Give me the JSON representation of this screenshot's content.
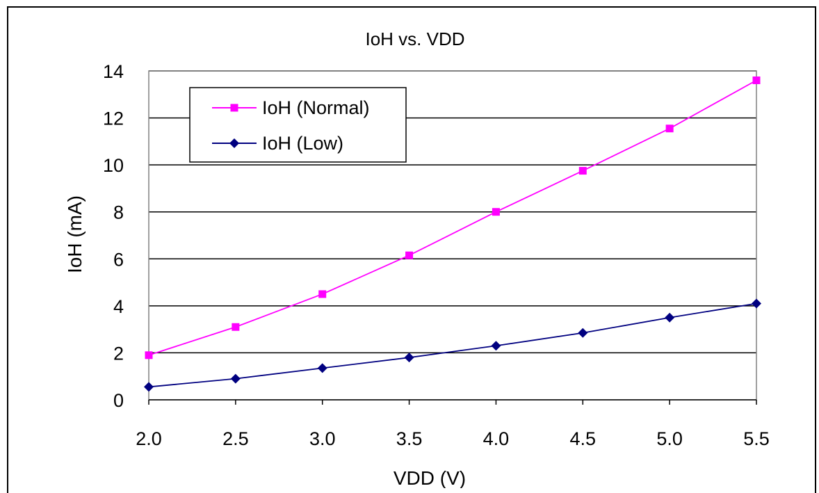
{
  "chart_data": {
    "type": "line",
    "title": "IoH vs. VDD",
    "xlabel": "VDD (V)",
    "ylabel": "IoH (mA)",
    "x": [
      2.0,
      2.5,
      3.0,
      3.5,
      4.0,
      4.5,
      5.0,
      5.5
    ],
    "x_tick_labels": [
      "2.0",
      "2.5",
      "3.0",
      "3.5",
      "4.0",
      "4.5",
      "5.0",
      "5.5"
    ],
    "xlim": [
      2.0,
      5.5
    ],
    "ylim": [
      0,
      14
    ],
    "y_ticks": [
      0,
      2,
      4,
      6,
      8,
      10,
      12,
      14
    ],
    "grid": "horizontal",
    "legend_position": "top-left",
    "series": [
      {
        "name": "IoH (Normal)",
        "color": "#ff00ff",
        "marker": "square",
        "values": [
          1.9,
          3.1,
          4.5,
          6.15,
          8.0,
          9.75,
          11.55,
          13.6
        ]
      },
      {
        "name": "IoH (Low)",
        "color": "#000080",
        "marker": "diamond",
        "values": [
          0.55,
          0.9,
          1.35,
          1.8,
          2.3,
          2.85,
          3.5,
          4.1
        ]
      }
    ]
  }
}
